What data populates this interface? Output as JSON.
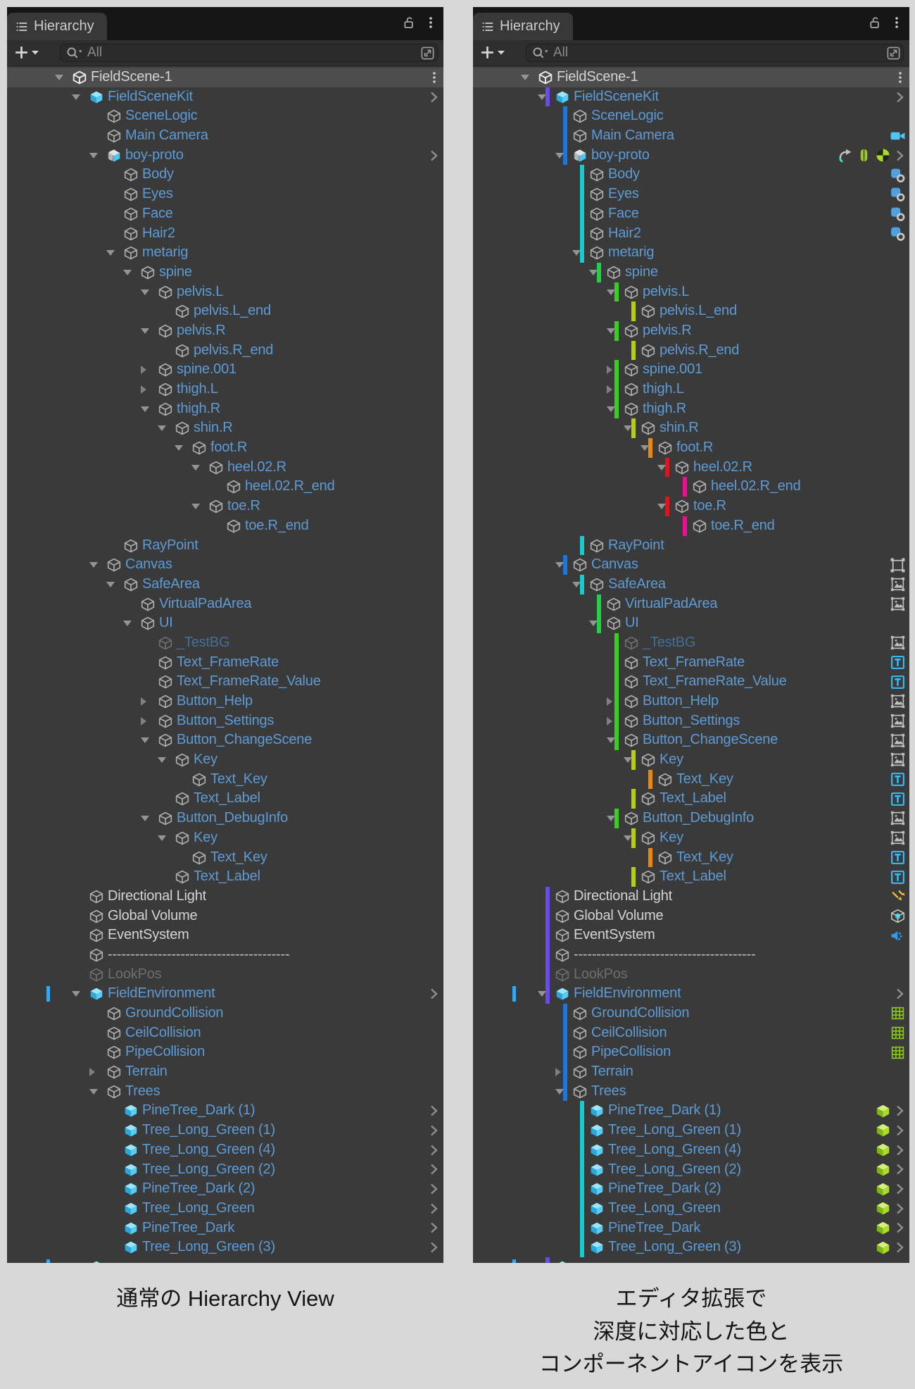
{
  "window": {
    "tab_icons": [
      "panel-menu",
      "unlock",
      "kebab-menu"
    ],
    "toolbar_icons": [
      "add-object",
      "dropdown-caret",
      "search-magnifier",
      "open-search-window"
    ]
  },
  "panels": {
    "left": {
      "tab_title": "Hierarchy",
      "search_placeholder": "All",
      "caption_lines": [
        "通常の Hierarchy View"
      ]
    },
    "right": {
      "tab_title": "Hierarchy",
      "search_placeholder": "All",
      "caption_lines": [
        "エディタ拡張で",
        "深度に対応した色と",
        "コンポーネントアイコンを表示"
      ]
    }
  },
  "colors": {
    "row_highlight": "#4d4d4d",
    "selection_tick": "#38a7f0",
    "text_blue": "#5d9bd5",
    "text_white": "#d4d4d4",
    "text_dim_blue": "#456e96",
    "text_gray": "#6e6e6e",
    "text_dash": "#bdbdbd"
  },
  "depth_colors": {
    "1": "#6c49ea",
    "2": "#1b76de",
    "3": "#17cbcf",
    "4": "#20d148",
    "5": "#39cf1e",
    "6": "#b7ce0f",
    "7": "#e8890b",
    "8": "#e3131e",
    "9": "#ee0f96"
  },
  "tree": {
    "rows": [
      {
        "n": "FieldScene-1",
        "d": 0,
        "i": "scene",
        "t": "w",
        "f": "o",
        "hi": true,
        "kebab": true
      },
      {
        "n": "FieldSceneKit",
        "d": 1,
        "i": "cube-solid",
        "t": "b",
        "f": "o",
        "ch": true
      },
      {
        "n": "SceneLogic",
        "d": 2,
        "i": "cube",
        "t": "b"
      },
      {
        "n": "Main Camera",
        "d": 2,
        "i": "cube",
        "t": "b",
        "co": [
          "camera"
        ]
      },
      {
        "n": "boy-proto",
        "d": 2,
        "i": "cube-model",
        "t": "b",
        "f": "o",
        "ch": true,
        "co": [
          "animator",
          "capsule",
          "rigidbody"
        ]
      },
      {
        "n": "Body",
        "d": 3,
        "i": "cube",
        "t": "b",
        "co": [
          "skinned"
        ]
      },
      {
        "n": "Eyes",
        "d": 3,
        "i": "cube",
        "t": "b",
        "co": [
          "skinned"
        ]
      },
      {
        "n": "Face",
        "d": 3,
        "i": "cube",
        "t": "b",
        "co": [
          "skinned"
        ]
      },
      {
        "n": "Hair2",
        "d": 3,
        "i": "cube",
        "t": "b",
        "co": [
          "skinned"
        ]
      },
      {
        "n": "metarig",
        "d": 3,
        "i": "cube",
        "t": "b",
        "f": "o"
      },
      {
        "n": "spine",
        "d": 4,
        "i": "cube",
        "t": "b",
        "f": "o"
      },
      {
        "n": "pelvis.L",
        "d": 5,
        "i": "cube",
        "t": "b",
        "f": "o"
      },
      {
        "n": "pelvis.L_end",
        "d": 6,
        "i": "cube",
        "t": "b"
      },
      {
        "n": "pelvis.R",
        "d": 5,
        "i": "cube",
        "t": "b",
        "f": "o"
      },
      {
        "n": "pelvis.R_end",
        "d": 6,
        "i": "cube",
        "t": "b"
      },
      {
        "n": "spine.001",
        "d": 5,
        "i": "cube",
        "t": "b",
        "f": "c"
      },
      {
        "n": "thigh.L",
        "d": 5,
        "i": "cube",
        "t": "b",
        "f": "c"
      },
      {
        "n": "thigh.R",
        "d": 5,
        "i": "cube",
        "t": "b",
        "f": "o"
      },
      {
        "n": "shin.R",
        "d": 6,
        "i": "cube",
        "t": "b",
        "f": "o"
      },
      {
        "n": "foot.R",
        "d": 7,
        "i": "cube",
        "t": "b",
        "f": "o"
      },
      {
        "n": "heel.02.R",
        "d": 8,
        "i": "cube",
        "t": "b",
        "f": "o"
      },
      {
        "n": "heel.02.R_end",
        "d": 9,
        "i": "cube",
        "t": "b"
      },
      {
        "n": "toe.R",
        "d": 8,
        "i": "cube",
        "t": "b",
        "f": "o"
      },
      {
        "n": "toe.R_end",
        "d": 9,
        "i": "cube",
        "t": "b"
      },
      {
        "n": "RayPoint",
        "d": 3,
        "i": "cube",
        "t": "b"
      },
      {
        "n": "Canvas",
        "d": 2,
        "i": "cube",
        "t": "b",
        "f": "o",
        "co": [
          "canvas"
        ]
      },
      {
        "n": "SafeArea",
        "d": 3,
        "i": "cube",
        "t": "b",
        "f": "o",
        "co": [
          "rect"
        ]
      },
      {
        "n": "VirtualPadArea",
        "d": 4,
        "i": "cube",
        "t": "b",
        "co": [
          "rect"
        ]
      },
      {
        "n": "UI",
        "d": 4,
        "i": "cube",
        "t": "b",
        "f": "o"
      },
      {
        "n": "_TestBG",
        "d": 5,
        "i": "cube-dim",
        "t": "bd",
        "co": [
          "rect"
        ]
      },
      {
        "n": "Text_FrameRate",
        "d": 5,
        "i": "cube",
        "t": "b",
        "co": [
          "text"
        ]
      },
      {
        "n": "Text_FrameRate_Value",
        "d": 5,
        "i": "cube",
        "t": "b",
        "co": [
          "text"
        ]
      },
      {
        "n": "Button_Help",
        "d": 5,
        "i": "cube",
        "t": "b",
        "f": "c",
        "co": [
          "rect"
        ]
      },
      {
        "n": "Button_Settings",
        "d": 5,
        "i": "cube",
        "t": "b",
        "f": "c",
        "co": [
          "rect"
        ]
      },
      {
        "n": "Button_ChangeScene",
        "d": 5,
        "i": "cube",
        "t": "b",
        "f": "o",
        "co": [
          "rect"
        ]
      },
      {
        "n": "Key",
        "d": 6,
        "i": "cube",
        "t": "b",
        "f": "o",
        "co": [
          "rect"
        ]
      },
      {
        "n": "Text_Key",
        "d": 7,
        "i": "cube",
        "t": "b",
        "co": [
          "text"
        ]
      },
      {
        "n": "Text_Label",
        "d": 6,
        "i": "cube",
        "t": "b",
        "co": [
          "text"
        ]
      },
      {
        "n": "Button_DebugInfo",
        "d": 5,
        "i": "cube",
        "t": "b",
        "f": "o",
        "co": [
          "rect"
        ]
      },
      {
        "n": "Key",
        "d": 6,
        "i": "cube",
        "t": "b",
        "f": "o",
        "co": [
          "rect"
        ]
      },
      {
        "n": "Text_Key",
        "d": 7,
        "i": "cube",
        "t": "b",
        "co": [
          "text"
        ]
      },
      {
        "n": "Text_Label",
        "d": 6,
        "i": "cube",
        "t": "b",
        "co": [
          "text"
        ]
      },
      {
        "n": "Directional Light",
        "d": 1,
        "i": "cube",
        "t": "w",
        "co": [
          "light"
        ]
      },
      {
        "n": "Global Volume",
        "d": 1,
        "i": "cube",
        "t": "w",
        "co": [
          "volume"
        ]
      },
      {
        "n": "EventSystem",
        "d": 1,
        "i": "cube",
        "t": "w",
        "co": [
          "event"
        ]
      },
      {
        "n": "----------------------------------------",
        "d": 1,
        "i": "cube",
        "t": "dash"
      },
      {
        "n": "LookPos",
        "d": 1,
        "i": "cube-dim",
        "t": "g"
      },
      {
        "n": "FieldEnvironment",
        "d": 1,
        "i": "cube-solid",
        "t": "b",
        "f": "o",
        "ch": true,
        "tick": true
      },
      {
        "n": "GroundCollision",
        "d": 2,
        "i": "cube",
        "t": "b",
        "co": [
          "collider"
        ]
      },
      {
        "n": "CeilCollision",
        "d": 2,
        "i": "cube",
        "t": "b",
        "co": [
          "collider"
        ]
      },
      {
        "n": "PipeCollision",
        "d": 2,
        "i": "cube",
        "t": "b",
        "co": [
          "collider"
        ]
      },
      {
        "n": "Terrain",
        "d": 2,
        "i": "cube",
        "t": "b",
        "f": "c"
      },
      {
        "n": "Trees",
        "d": 2,
        "i": "cube",
        "t": "b",
        "f": "o"
      },
      {
        "n": "PineTree_Dark (1)",
        "d": 3,
        "i": "cube-solid",
        "t": "b",
        "ch": true,
        "co": [
          "lodcube"
        ]
      },
      {
        "n": "Tree_Long_Green (1)",
        "d": 3,
        "i": "cube-solid",
        "t": "b",
        "ch": true,
        "co": [
          "lodcube"
        ]
      },
      {
        "n": "Tree_Long_Green (4)",
        "d": 3,
        "i": "cube-solid",
        "t": "b",
        "ch": true,
        "co": [
          "lodcube"
        ]
      },
      {
        "n": "Tree_Long_Green (2)",
        "d": 3,
        "i": "cube-solid",
        "t": "b",
        "ch": true,
        "co": [
          "lodcube"
        ]
      },
      {
        "n": "PineTree_Dark (2)",
        "d": 3,
        "i": "cube-solid",
        "t": "b",
        "ch": true,
        "co": [
          "lodcube"
        ]
      },
      {
        "n": "Tree_Long_Green",
        "d": 3,
        "i": "cube-solid",
        "t": "b",
        "ch": true,
        "co": [
          "lodcube"
        ]
      },
      {
        "n": "PineTree_Dark",
        "d": 3,
        "i": "cube-solid",
        "t": "b",
        "ch": true,
        "co": [
          "lodcube"
        ]
      },
      {
        "n": "Tree_Long_Green (3)",
        "d": 3,
        "i": "cube-solid",
        "t": "b",
        "ch": true,
        "co": [
          "lodcube"
        ]
      },
      {
        "n": "",
        "d": 1,
        "i": "cube-solid",
        "t": "b",
        "tick": true,
        "partial": true
      }
    ]
  }
}
